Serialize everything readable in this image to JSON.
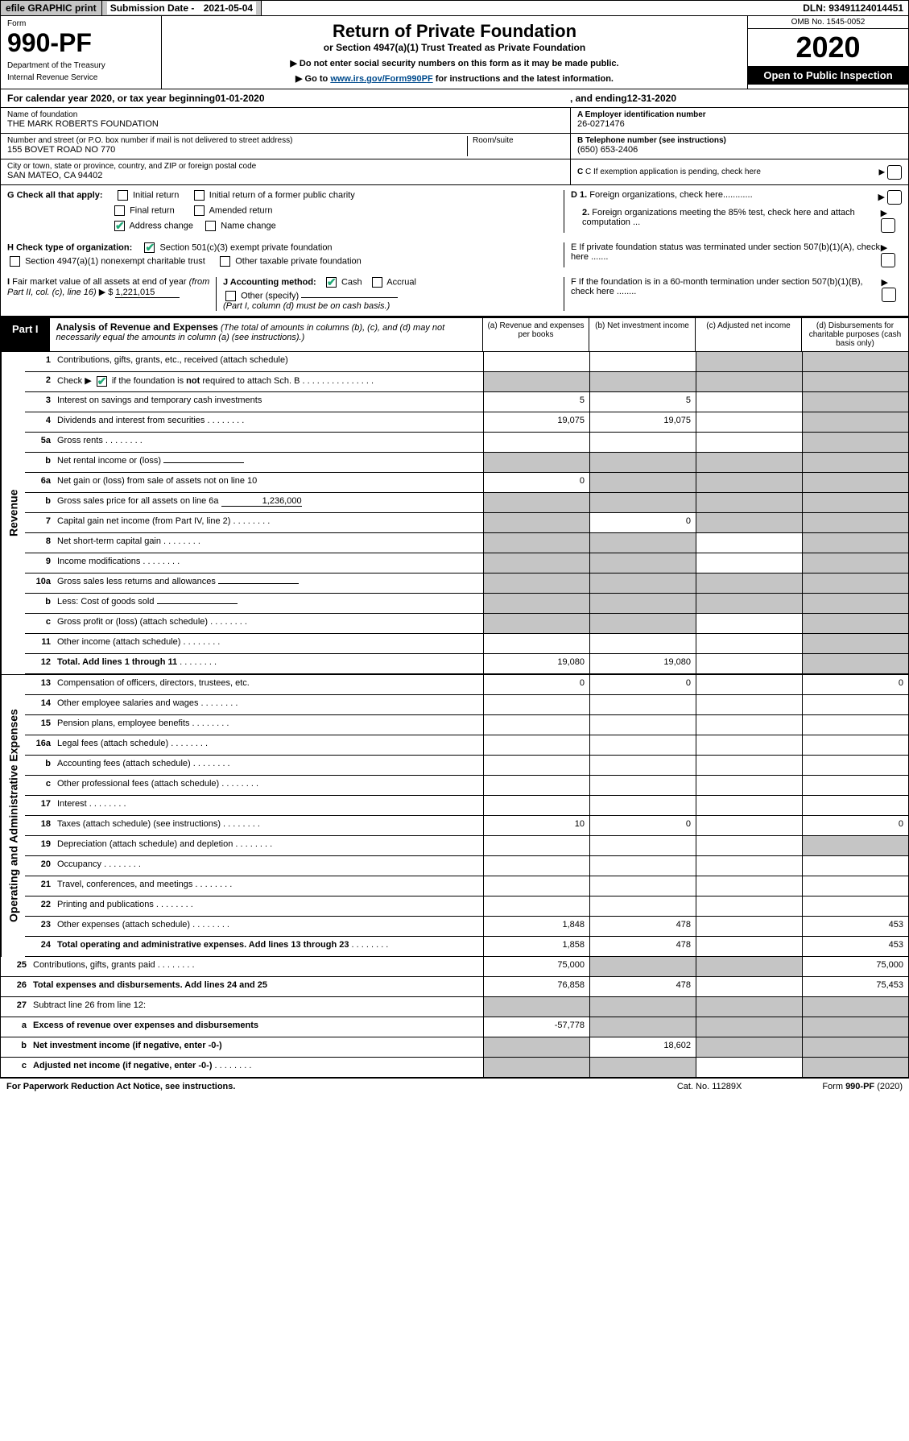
{
  "top": {
    "efile": "efile GRAPHIC print",
    "sub_label": "Submission Date - ",
    "sub_date": "2021-05-04",
    "dln": "DLN: 93491124014451"
  },
  "header": {
    "form_label": "Form",
    "form_no": "990-PF",
    "dept1": "Department of the Treasury",
    "dept2": "Internal Revenue Service",
    "title": "Return of Private Foundation",
    "subtitle": "or Section 4947(a)(1) Trust Treated as Private Foundation",
    "note1": "▶ Do not enter social security numbers on this form as it may be made public.",
    "note2": "▶ Go to ",
    "note2_link": "www.irs.gov/Form990PF",
    "note2_tail": " for instructions and the latest information.",
    "omb": "OMB No. 1545-0052",
    "year": "2020",
    "inspect": "Open to Public Inspection"
  },
  "calyear": {
    "pre": "For calendar year 2020, or tax year beginning ",
    "begin": "01-01-2020",
    "mid": ", and ending ",
    "end": "12-31-2020"
  },
  "ident": {
    "name_label": "Name of foundation",
    "name": "THE MARK ROBERTS FOUNDATION",
    "addr_label": "Number and street (or P.O. box number if mail is not delivered to street address)",
    "addr": "155 BOVET ROAD NO 770",
    "room_label": "Room/suite",
    "city_label": "City or town, state or province, country, and ZIP or foreign postal code",
    "city": "SAN MATEO, CA  94402",
    "a_label": "A Employer identification number",
    "a_val": "26-0271476",
    "b_label": "B Telephone number (see instructions)",
    "b_val": "(650) 653-2406",
    "c_label": "C If exemption application is pending, check here"
  },
  "checks": {
    "g_label": "G Check all that apply:",
    "g_initial": "Initial return",
    "g_initial_former": "Initial return of a former public charity",
    "g_final": "Final return",
    "g_amended": "Amended return",
    "g_addr": "Address change",
    "g_name": "Name change",
    "h_label": "H Check type of organization:",
    "h_501c3": "Section 501(c)(3) exempt private foundation",
    "h_4947": "Section 4947(a)(1) nonexempt charitable trust",
    "h_other": "Other taxable private foundation",
    "i_label": "I Fair market value of all assets at end of year (from Part II, col. (c), line 16) ▶ $",
    "i_val": "1,221,015",
    "j_label": "J Accounting method:",
    "j_cash": "Cash",
    "j_accrual": "Accrual",
    "j_other": "Other (specify)",
    "j_note": "(Part I, column (d) must be on cash basis.)",
    "d1": "D 1. Foreign organizations, check here............",
    "d2": "2. Foreign organizations meeting the 85% test, check here and attach computation ...",
    "e": "E  If private foundation status was terminated under section 507(b)(1)(A), check here .......",
    "f": "F  If the foundation is in a 60-month termination under section 507(b)(1)(B), check here ........"
  },
  "part1": {
    "num": "Part I",
    "title": "Analysis of Revenue and Expenses",
    "title_note": " (The total of amounts in columns (b), (c), and (d) may not necessarily equal the amounts in column (a) (see instructions).)",
    "col_a": "(a)   Revenue and expenses per books",
    "col_b": "(b)   Net investment income",
    "col_c": "(c)   Adjusted net income",
    "col_d": "(d)   Disbursements for charitable purposes (cash basis only)"
  },
  "sides": {
    "rev": "Revenue",
    "exp": "Operating and Administrative Expenses"
  },
  "rows": [
    {
      "n": "1",
      "d": "Contributions, gifts, grants, etc., received (attach schedule)",
      "a": "",
      "b": "",
      "c": "s",
      "dd": "s"
    },
    {
      "n": "2",
      "d": "Check ▶ [x] if the foundation is not required to attach Sch. B",
      "a": "s",
      "b": "s",
      "c": "s",
      "dd": "s",
      "special": "check"
    },
    {
      "n": "3",
      "d": "Interest on savings and temporary cash investments",
      "a": "5",
      "b": "5",
      "c": "",
      "dd": "s"
    },
    {
      "n": "4",
      "d": "Dividends and interest from securities",
      "a": "19,075",
      "b": "19,075",
      "c": "",
      "dd": "s",
      "dots": true
    },
    {
      "n": "5a",
      "d": "Gross rents",
      "a": "",
      "b": "",
      "c": "",
      "dd": "s",
      "dots": true
    },
    {
      "n": "b",
      "d": "Net rental income or (loss)",
      "a": "s",
      "b": "s",
      "c": "s",
      "dd": "s",
      "inline": true
    },
    {
      "n": "6a",
      "d": "Net gain or (loss) from sale of assets not on line 10",
      "a": "0",
      "b": "s",
      "c": "s",
      "dd": "s"
    },
    {
      "n": "b",
      "d": "Gross sales price for all assets on line 6a",
      "a": "s",
      "b": "s",
      "c": "s",
      "dd": "s",
      "inline": true,
      "inline_val": "1,236,000"
    },
    {
      "n": "7",
      "d": "Capital gain net income (from Part IV, line 2)",
      "a": "s",
      "b": "0",
      "c": "s",
      "dd": "s",
      "dots": true
    },
    {
      "n": "8",
      "d": "Net short-term capital gain",
      "a": "s",
      "b": "s",
      "c": "",
      "dd": "s",
      "dots": true
    },
    {
      "n": "9",
      "d": "Income modifications",
      "a": "s",
      "b": "s",
      "c": "",
      "dd": "s",
      "dots": true
    },
    {
      "n": "10a",
      "d": "Gross sales less returns and allowances",
      "a": "s",
      "b": "s",
      "c": "s",
      "dd": "s",
      "inline": true
    },
    {
      "n": "b",
      "d": "Less: Cost of goods sold",
      "a": "s",
      "b": "s",
      "c": "s",
      "dd": "s",
      "inline": true,
      "dots": true
    },
    {
      "n": "c",
      "d": "Gross profit or (loss) (attach schedule)",
      "a": "s",
      "b": "s",
      "c": "",
      "dd": "s",
      "dots": true
    },
    {
      "n": "11",
      "d": "Other income (attach schedule)",
      "a": "",
      "b": "",
      "c": "",
      "dd": "s",
      "dots": true
    },
    {
      "n": "12",
      "d": "Total. Add lines 1 through 11",
      "a": "19,080",
      "b": "19,080",
      "c": "",
      "dd": "s",
      "bold": true,
      "dots": true
    },
    {
      "n": "13",
      "d": "Compensation of officers, directors, trustees, etc.",
      "a": "0",
      "b": "0",
      "c": "",
      "dd": "0"
    },
    {
      "n": "14",
      "d": "Other employee salaries and wages",
      "a": "",
      "b": "",
      "c": "",
      "dd": "",
      "dots": true
    },
    {
      "n": "15",
      "d": "Pension plans, employee benefits",
      "a": "",
      "b": "",
      "c": "",
      "dd": "",
      "dots": true
    },
    {
      "n": "16a",
      "d": "Legal fees (attach schedule)",
      "a": "",
      "b": "",
      "c": "",
      "dd": "",
      "dots": true
    },
    {
      "n": "b",
      "d": "Accounting fees (attach schedule)",
      "a": "",
      "b": "",
      "c": "",
      "dd": "",
      "dots": true
    },
    {
      "n": "c",
      "d": "Other professional fees (attach schedule)",
      "a": "",
      "b": "",
      "c": "",
      "dd": "",
      "dots": true
    },
    {
      "n": "17",
      "d": "Interest",
      "a": "",
      "b": "",
      "c": "",
      "dd": "",
      "dots": true
    },
    {
      "n": "18",
      "d": "Taxes (attach schedule) (see instructions)",
      "a": "10",
      "b": "0",
      "c": "",
      "dd": "0",
      "dots": true
    },
    {
      "n": "19",
      "d": "Depreciation (attach schedule) and depletion",
      "a": "",
      "b": "",
      "c": "",
      "dd": "s",
      "dots": true
    },
    {
      "n": "20",
      "d": "Occupancy",
      "a": "",
      "b": "",
      "c": "",
      "dd": "",
      "dots": true
    },
    {
      "n": "21",
      "d": "Travel, conferences, and meetings",
      "a": "",
      "b": "",
      "c": "",
      "dd": "",
      "dots": true
    },
    {
      "n": "22",
      "d": "Printing and publications",
      "a": "",
      "b": "",
      "c": "",
      "dd": "",
      "dots": true
    },
    {
      "n": "23",
      "d": "Other expenses (attach schedule)",
      "a": "1,848",
      "b": "478",
      "c": "",
      "dd": "453",
      "dots": true
    },
    {
      "n": "24",
      "d": "Total operating and administrative expenses. Add lines 13 through 23",
      "a": "1,858",
      "b": "478",
      "c": "",
      "dd": "453",
      "bold": true,
      "dots": true
    },
    {
      "n": "25",
      "d": "Contributions, gifts, grants paid",
      "a": "75,000",
      "b": "s",
      "c": "s",
      "dd": "75,000",
      "dots": true
    },
    {
      "n": "26",
      "d": "Total expenses and disbursements. Add lines 24 and 25",
      "a": "76,858",
      "b": "478",
      "c": "",
      "dd": "75,453",
      "bold": true
    },
    {
      "n": "27",
      "d": "Subtract line 26 from line 12:",
      "a": "s",
      "b": "s",
      "c": "s",
      "dd": "s"
    },
    {
      "n": "a",
      "d": "Excess of revenue over expenses and disbursements",
      "a": "-57,778",
      "b": "s",
      "c": "s",
      "dd": "s",
      "bold": true
    },
    {
      "n": "b",
      "d": "Net investment income (if negative, enter -0-)",
      "a": "s",
      "b": "18,602",
      "c": "s",
      "dd": "s",
      "bold": true
    },
    {
      "n": "c",
      "d": "Adjusted net income (if negative, enter -0-)",
      "a": "s",
      "b": "s",
      "c": "",
      "dd": "s",
      "bold": true,
      "dots": true
    }
  ],
  "footer": {
    "left": "For Paperwork Reduction Act Notice, see instructions.",
    "mid": "Cat. No. 11289X",
    "right": "Form 990-PF (2020)"
  }
}
